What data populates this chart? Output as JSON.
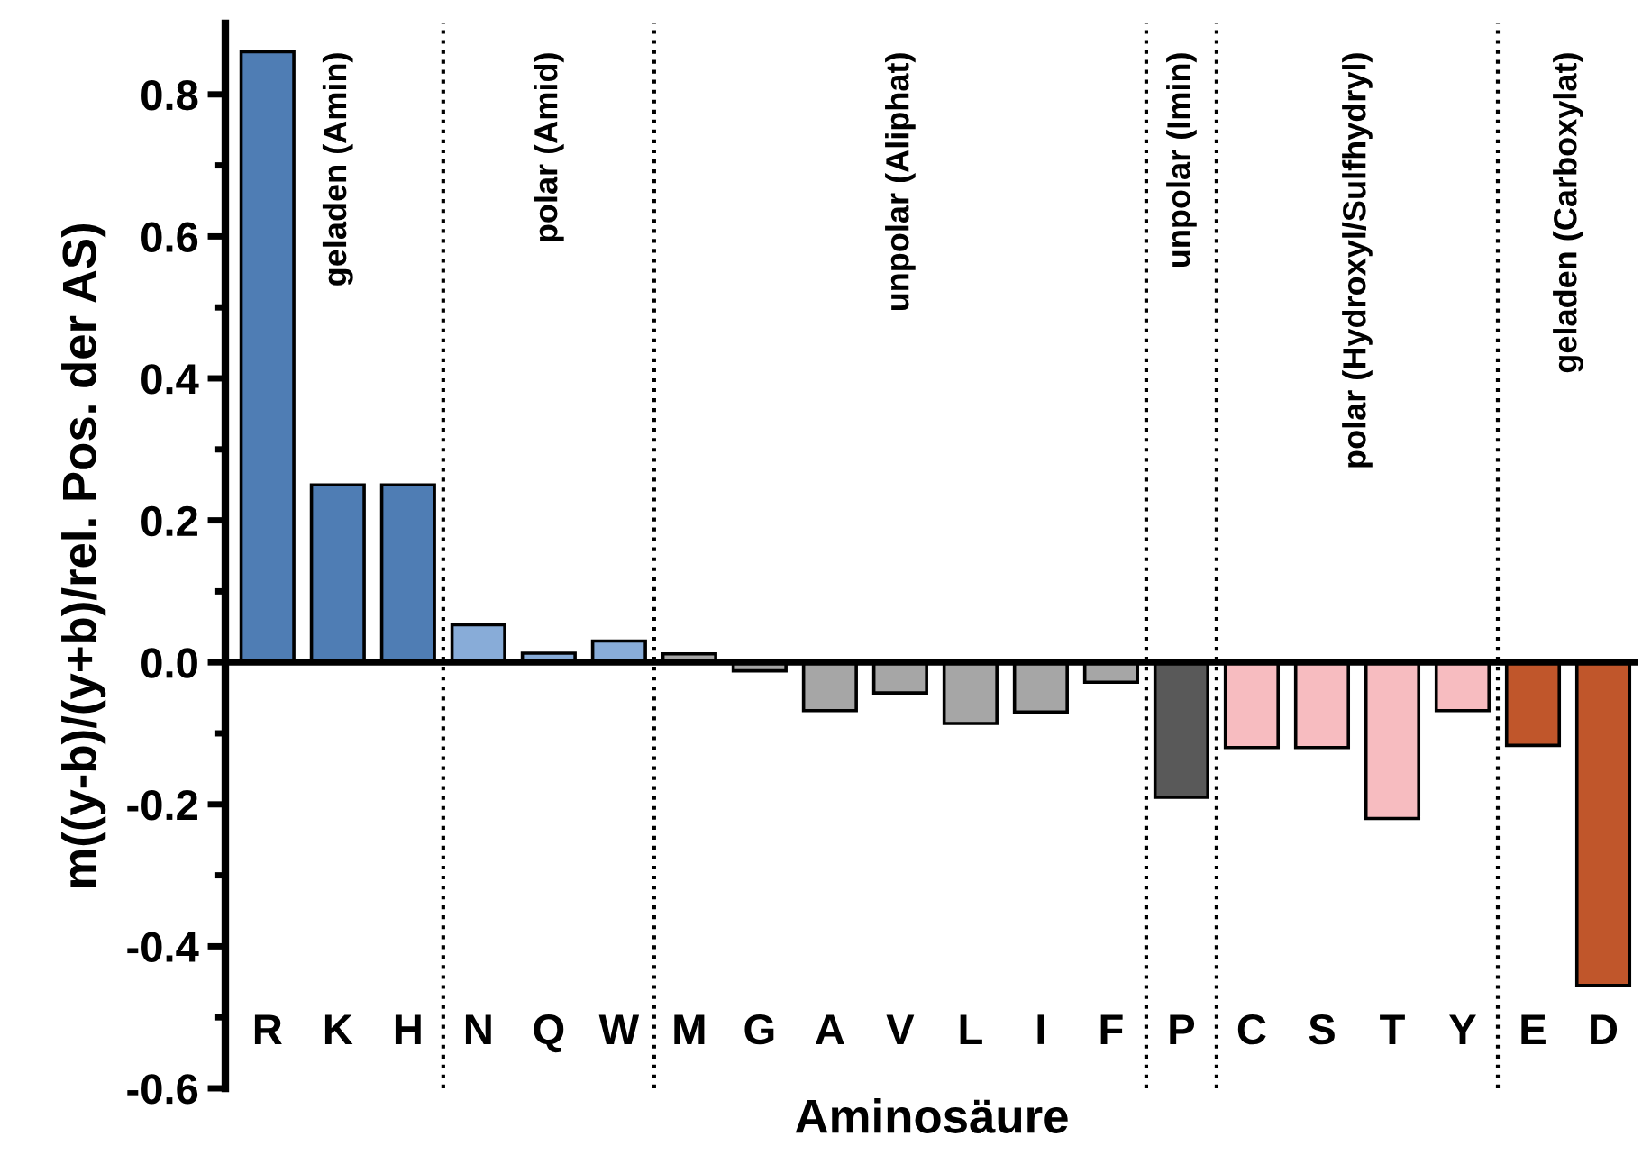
{
  "chart_data": {
    "type": "bar",
    "xlabel": "Aminosäure",
    "ylabel": "m((y-b)/(y+b)/rel. Pos. der AS)",
    "categories": [
      "R",
      "K",
      "H",
      "N",
      "Q",
      "W",
      "M",
      "G",
      "A",
      "V",
      "L",
      "I",
      "F",
      "P",
      "C",
      "S",
      "T",
      "Y",
      "E",
      "D"
    ],
    "values": [
      0.86,
      0.25,
      0.25,
      0.053,
      0.013,
      0.03,
      0.012,
      -0.012,
      -0.068,
      -0.043,
      -0.086,
      -0.07,
      -0.028,
      -0.19,
      -0.12,
      -0.12,
      -0.22,
      -0.068,
      -0.117,
      -0.455
    ],
    "colors": [
      "#4f7db4",
      "#4f7db4",
      "#4f7db4",
      "#88acd8",
      "#88acd8",
      "#88acd8",
      "#a6a6a6",
      "#a6a6a6",
      "#a6a6a6",
      "#a6a6a6",
      "#a6a6a6",
      "#a6a6a6",
      "#a6a6a6",
      "#595959",
      "#f7bcc0",
      "#f7bcc0",
      "#f7bcc0",
      "#f7bcc0",
      "#c0562b",
      "#c0562b"
    ],
    "ylim": [
      -0.6,
      0.9
    ],
    "yticks": [
      -0.6,
      {
        "value": -0.5,
        "label": null
      },
      -0.4,
      {
        "value": -0.3,
        "label": null
      },
      -0.2,
      {
        "value": -0.1,
        "label": null
      },
      {
        "value": 0,
        "label": "0.0"
      },
      {
        "value": 0.1,
        "label": null
      },
      0.2,
      {
        "value": 0.3,
        "label": null
      },
      0.4,
      {
        "value": 0.5,
        "label": null
      },
      0.6,
      {
        "value": 0.7,
        "label": null
      },
      0.8
    ],
    "annotations": [
      "geladen (Amin)",
      "polar (Amid)",
      "unpolar (Aliphat)",
      "unpolar (Imin)",
      "polar (Hydroxyl/Sulfhydryl)",
      "geladen (Carboxylat)"
    ],
    "grid": false
  }
}
